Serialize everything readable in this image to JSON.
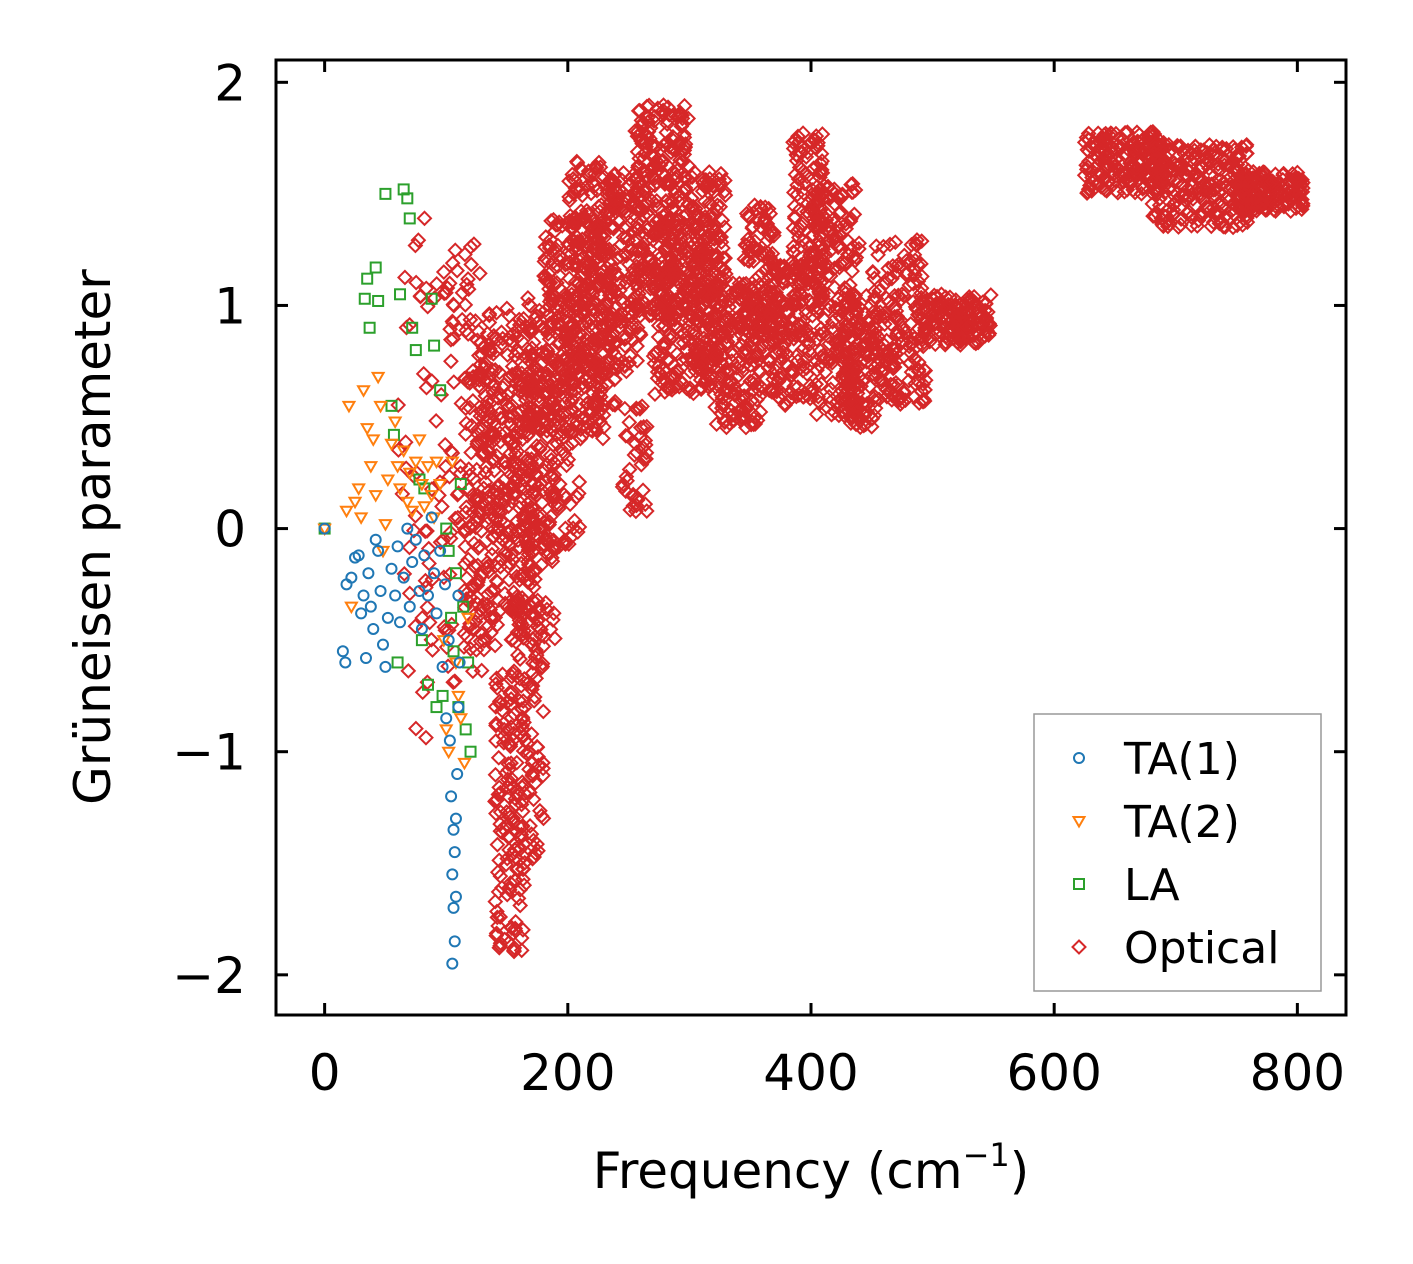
{
  "chart_data": {
    "type": "scatter",
    "title": "",
    "xlabel": "Frequency (cm",
    "xlabel_sup": "−1",
    "xlabel_end": ")",
    "ylabel": "Grüneisen parameter",
    "xlim": [
      -40,
      840
    ],
    "ylim": [
      -2.18,
      2.1
    ],
    "xticks": [
      0,
      200,
      400,
      600,
      800
    ],
    "xtick_labels": [
      "0",
      "200",
      "400",
      "600",
      "800"
    ],
    "yticks": [
      -2,
      -1,
      0,
      1,
      2
    ],
    "ytick_labels": [
      "−2",
      "−1",
      "0",
      "1",
      "2"
    ],
    "grid": false,
    "legend_position": "lower-right",
    "series": [
      {
        "name": "TA(1)",
        "marker": "circle",
        "color": "#1f77b4",
        "points": [
          [
            0,
            0
          ],
          [
            15,
            -0.55
          ],
          [
            17,
            -0.6
          ],
          [
            18,
            -0.25
          ],
          [
            22,
            -0.22
          ],
          [
            25,
            -0.13
          ],
          [
            28,
            -0.12
          ],
          [
            30,
            -0.38
          ],
          [
            32,
            -0.3
          ],
          [
            34,
            -0.58
          ],
          [
            36,
            -0.2
          ],
          [
            38,
            -0.35
          ],
          [
            40,
            -0.45
          ],
          [
            42,
            -0.05
          ],
          [
            44,
            -0.1
          ],
          [
            46,
            -0.28
          ],
          [
            48,
            -0.52
          ],
          [
            50,
            -0.62
          ],
          [
            52,
            -0.4
          ],
          [
            55,
            -0.18
          ],
          [
            58,
            -0.3
          ],
          [
            60,
            -0.08
          ],
          [
            62,
            -0.42
          ],
          [
            65,
            -0.22
          ],
          [
            68,
            0.0
          ],
          [
            70,
            -0.35
          ],
          [
            72,
            -0.15
          ],
          [
            75,
            -0.05
          ],
          [
            78,
            -0.28
          ],
          [
            80,
            -0.45
          ],
          [
            82,
            -0.12
          ],
          [
            85,
            -0.3
          ],
          [
            88,
            0.05
          ],
          [
            90,
            -0.2
          ],
          [
            92,
            -0.38
          ],
          [
            95,
            -0.1
          ],
          [
            97,
            -0.62
          ],
          [
            99,
            -0.25
          ],
          [
            100,
            -0.85
          ],
          [
            102,
            -0.5
          ],
          [
            103,
            -0.95
          ],
          [
            104,
            -1.2
          ],
          [
            105,
            -1.55
          ],
          [
            105,
            -1.95
          ],
          [
            106,
            -1.7
          ],
          [
            106,
            -1.35
          ],
          [
            107,
            -1.85
          ],
          [
            107,
            -1.45
          ],
          [
            108,
            -1.3
          ],
          [
            108,
            -1.65
          ],
          [
            109,
            -1.1
          ],
          [
            110,
            -0.8
          ],
          [
            110,
            -0.3
          ],
          [
            111,
            -0.6
          ]
        ]
      },
      {
        "name": "TA(2)",
        "marker": "triangle-down",
        "color": "#ff7f0e",
        "points": [
          [
            0,
            0
          ],
          [
            18,
            0.08
          ],
          [
            20,
            0.55
          ],
          [
            22,
            -0.35
          ],
          [
            25,
            0.12
          ],
          [
            28,
            0.18
          ],
          [
            30,
            0.05
          ],
          [
            32,
            0.62
          ],
          [
            35,
            0.45
          ],
          [
            38,
            0.28
          ],
          [
            40,
            0.4
          ],
          [
            42,
            0.15
          ],
          [
            44,
            0.68
          ],
          [
            46,
            0.55
          ],
          [
            48,
            -0.1
          ],
          [
            50,
            0.02
          ],
          [
            52,
            0.22
          ],
          [
            55,
            0.38
          ],
          [
            58,
            0.48
          ],
          [
            60,
            0.28
          ],
          [
            62,
            0.18
          ],
          [
            65,
            0.35
          ],
          [
            68,
            0.12
          ],
          [
            70,
            0.25
          ],
          [
            72,
            0.08
          ],
          [
            75,
            0.3
          ],
          [
            78,
            0.4
          ],
          [
            80,
            0.2
          ],
          [
            82,
            0.1
          ],
          [
            85,
            0.28
          ],
          [
            88,
            0.15
          ],
          [
            90,
            0.05
          ],
          [
            92,
            0.3
          ],
          [
            95,
            0.2
          ],
          [
            98,
            -0.5
          ],
          [
            100,
            -0.9
          ],
          [
            102,
            -1.0
          ],
          [
            105,
            0.3
          ],
          [
            108,
            -0.6
          ],
          [
            110,
            -0.75
          ],
          [
            112,
            -0.85
          ],
          [
            115,
            -1.05
          ],
          [
            118,
            -0.4
          ]
        ]
      },
      {
        "name": "LA",
        "marker": "square",
        "color": "#2ca02c",
        "points": [
          [
            0,
            0
          ],
          [
            33,
            1.03
          ],
          [
            35,
            1.12
          ],
          [
            37,
            0.9
          ],
          [
            42,
            1.17
          ],
          [
            44,
            1.02
          ],
          [
            50,
            1.5
          ],
          [
            55,
            0.55
          ],
          [
            57,
            0.42
          ],
          [
            60,
            -0.6
          ],
          [
            62,
            1.05
          ],
          [
            65,
            1.52
          ],
          [
            68,
            1.48
          ],
          [
            70,
            1.39
          ],
          [
            72,
            0.9
          ],
          [
            75,
            0.8
          ],
          [
            78,
            0.22
          ],
          [
            80,
            -0.5
          ],
          [
            82,
            0.18
          ],
          [
            85,
            -0.7
          ],
          [
            88,
            1.03
          ],
          [
            90,
            0.82
          ],
          [
            92,
            -0.8
          ],
          [
            95,
            0.62
          ],
          [
            97,
            -0.75
          ],
          [
            100,
            0.0
          ],
          [
            102,
            -0.1
          ],
          [
            104,
            -0.4
          ],
          [
            106,
            -0.55
          ],
          [
            108,
            -0.2
          ],
          [
            110,
            -0.8
          ],
          [
            112,
            0.2
          ],
          [
            114,
            -0.35
          ],
          [
            116,
            -0.9
          ],
          [
            118,
            -0.6
          ],
          [
            120,
            -1.0
          ]
        ]
      },
      {
        "name": "Optical",
        "marker": "diamond",
        "color": "#d62728",
        "points": []
      }
    ],
    "optical_bands": [
      {
        "x": [
          60,
          95
        ],
        "y": [
          -0.95,
          1.4
        ],
        "count": 50
      },
      {
        "x": [
          95,
          130
        ],
        "y": [
          -0.7,
          1.28
        ],
        "count": 90
      },
      {
        "x": [
          115,
          145
        ],
        "y": [
          -0.55,
          0.9
        ],
        "count": 110
      },
      {
        "x": [
          125,
          175
        ],
        "y": [
          -0.4,
          1.0
        ],
        "count": 260
      },
      {
        "x": [
          140,
          165
        ],
        "y": [
          -1.9,
          -0.6
        ],
        "count": 130
      },
      {
        "x": [
          150,
          180
        ],
        "y": [
          -1.5,
          -0.3
        ],
        "count": 100
      },
      {
        "x": [
          150,
          190
        ],
        "y": [
          -0.5,
          0.7
        ],
        "count": 120
      },
      {
        "x": [
          165,
          210
        ],
        "y": [
          -0.1,
          1.05
        ],
        "count": 220
      },
      {
        "x": [
          180,
          230
        ],
        "y": [
          0.4,
          1.4
        ],
        "count": 250
      },
      {
        "x": [
          200,
          240
        ],
        "y": [
          0.55,
          1.65
        ],
        "count": 200
      },
      {
        "x": [
          230,
          260
        ],
        "y": [
          0.7,
          1.6
        ],
        "count": 160
      },
      {
        "x": [
          245,
          265
        ],
        "y": [
          0.05,
          0.55
        ],
        "count": 40
      },
      {
        "x": [
          255,
          300
        ],
        "y": [
          0.95,
          1.9
        ],
        "count": 300
      },
      {
        "x": [
          270,
          320
        ],
        "y": [
          0.6,
          1.4
        ],
        "count": 220
      },
      {
        "x": [
          300,
          330
        ],
        "y": [
          0.7,
          1.6
        ],
        "count": 180
      },
      {
        "x": [
          320,
          360
        ],
        "y": [
          0.45,
          1.1
        ],
        "count": 180
      },
      {
        "x": [
          345,
          370
        ],
        "y": [
          0.8,
          1.45
        ],
        "count": 120
      },
      {
        "x": [
          365,
          400
        ],
        "y": [
          0.55,
          1.2
        ],
        "count": 160
      },
      {
        "x": [
          385,
          410
        ],
        "y": [
          1.0,
          1.78
        ],
        "count": 130
      },
      {
        "x": [
          400,
          440
        ],
        "y": [
          0.5,
          1.55
        ],
        "count": 220
      },
      {
        "x": [
          425,
          455
        ],
        "y": [
          0.45,
          1.05
        ],
        "count": 140
      },
      {
        "x": [
          450,
          495
        ],
        "y": [
          0.55,
          1.3
        ],
        "count": 180
      },
      {
        "x": [
          490,
          548
        ],
        "y": [
          0.82,
          1.05
        ],
        "count": 160
      },
      {
        "x": [
          625,
          690
        ],
        "y": [
          1.5,
          1.78
        ],
        "count": 200
      },
      {
        "x": [
          680,
          760
        ],
        "y": [
          1.35,
          1.72
        ],
        "count": 240
      },
      {
        "x": [
          750,
          805
        ],
        "y": [
          1.42,
          1.6
        ],
        "count": 160
      }
    ],
    "legend": [
      "TA(1)",
      "TA(2)",
      "LA",
      "Optical"
    ]
  }
}
